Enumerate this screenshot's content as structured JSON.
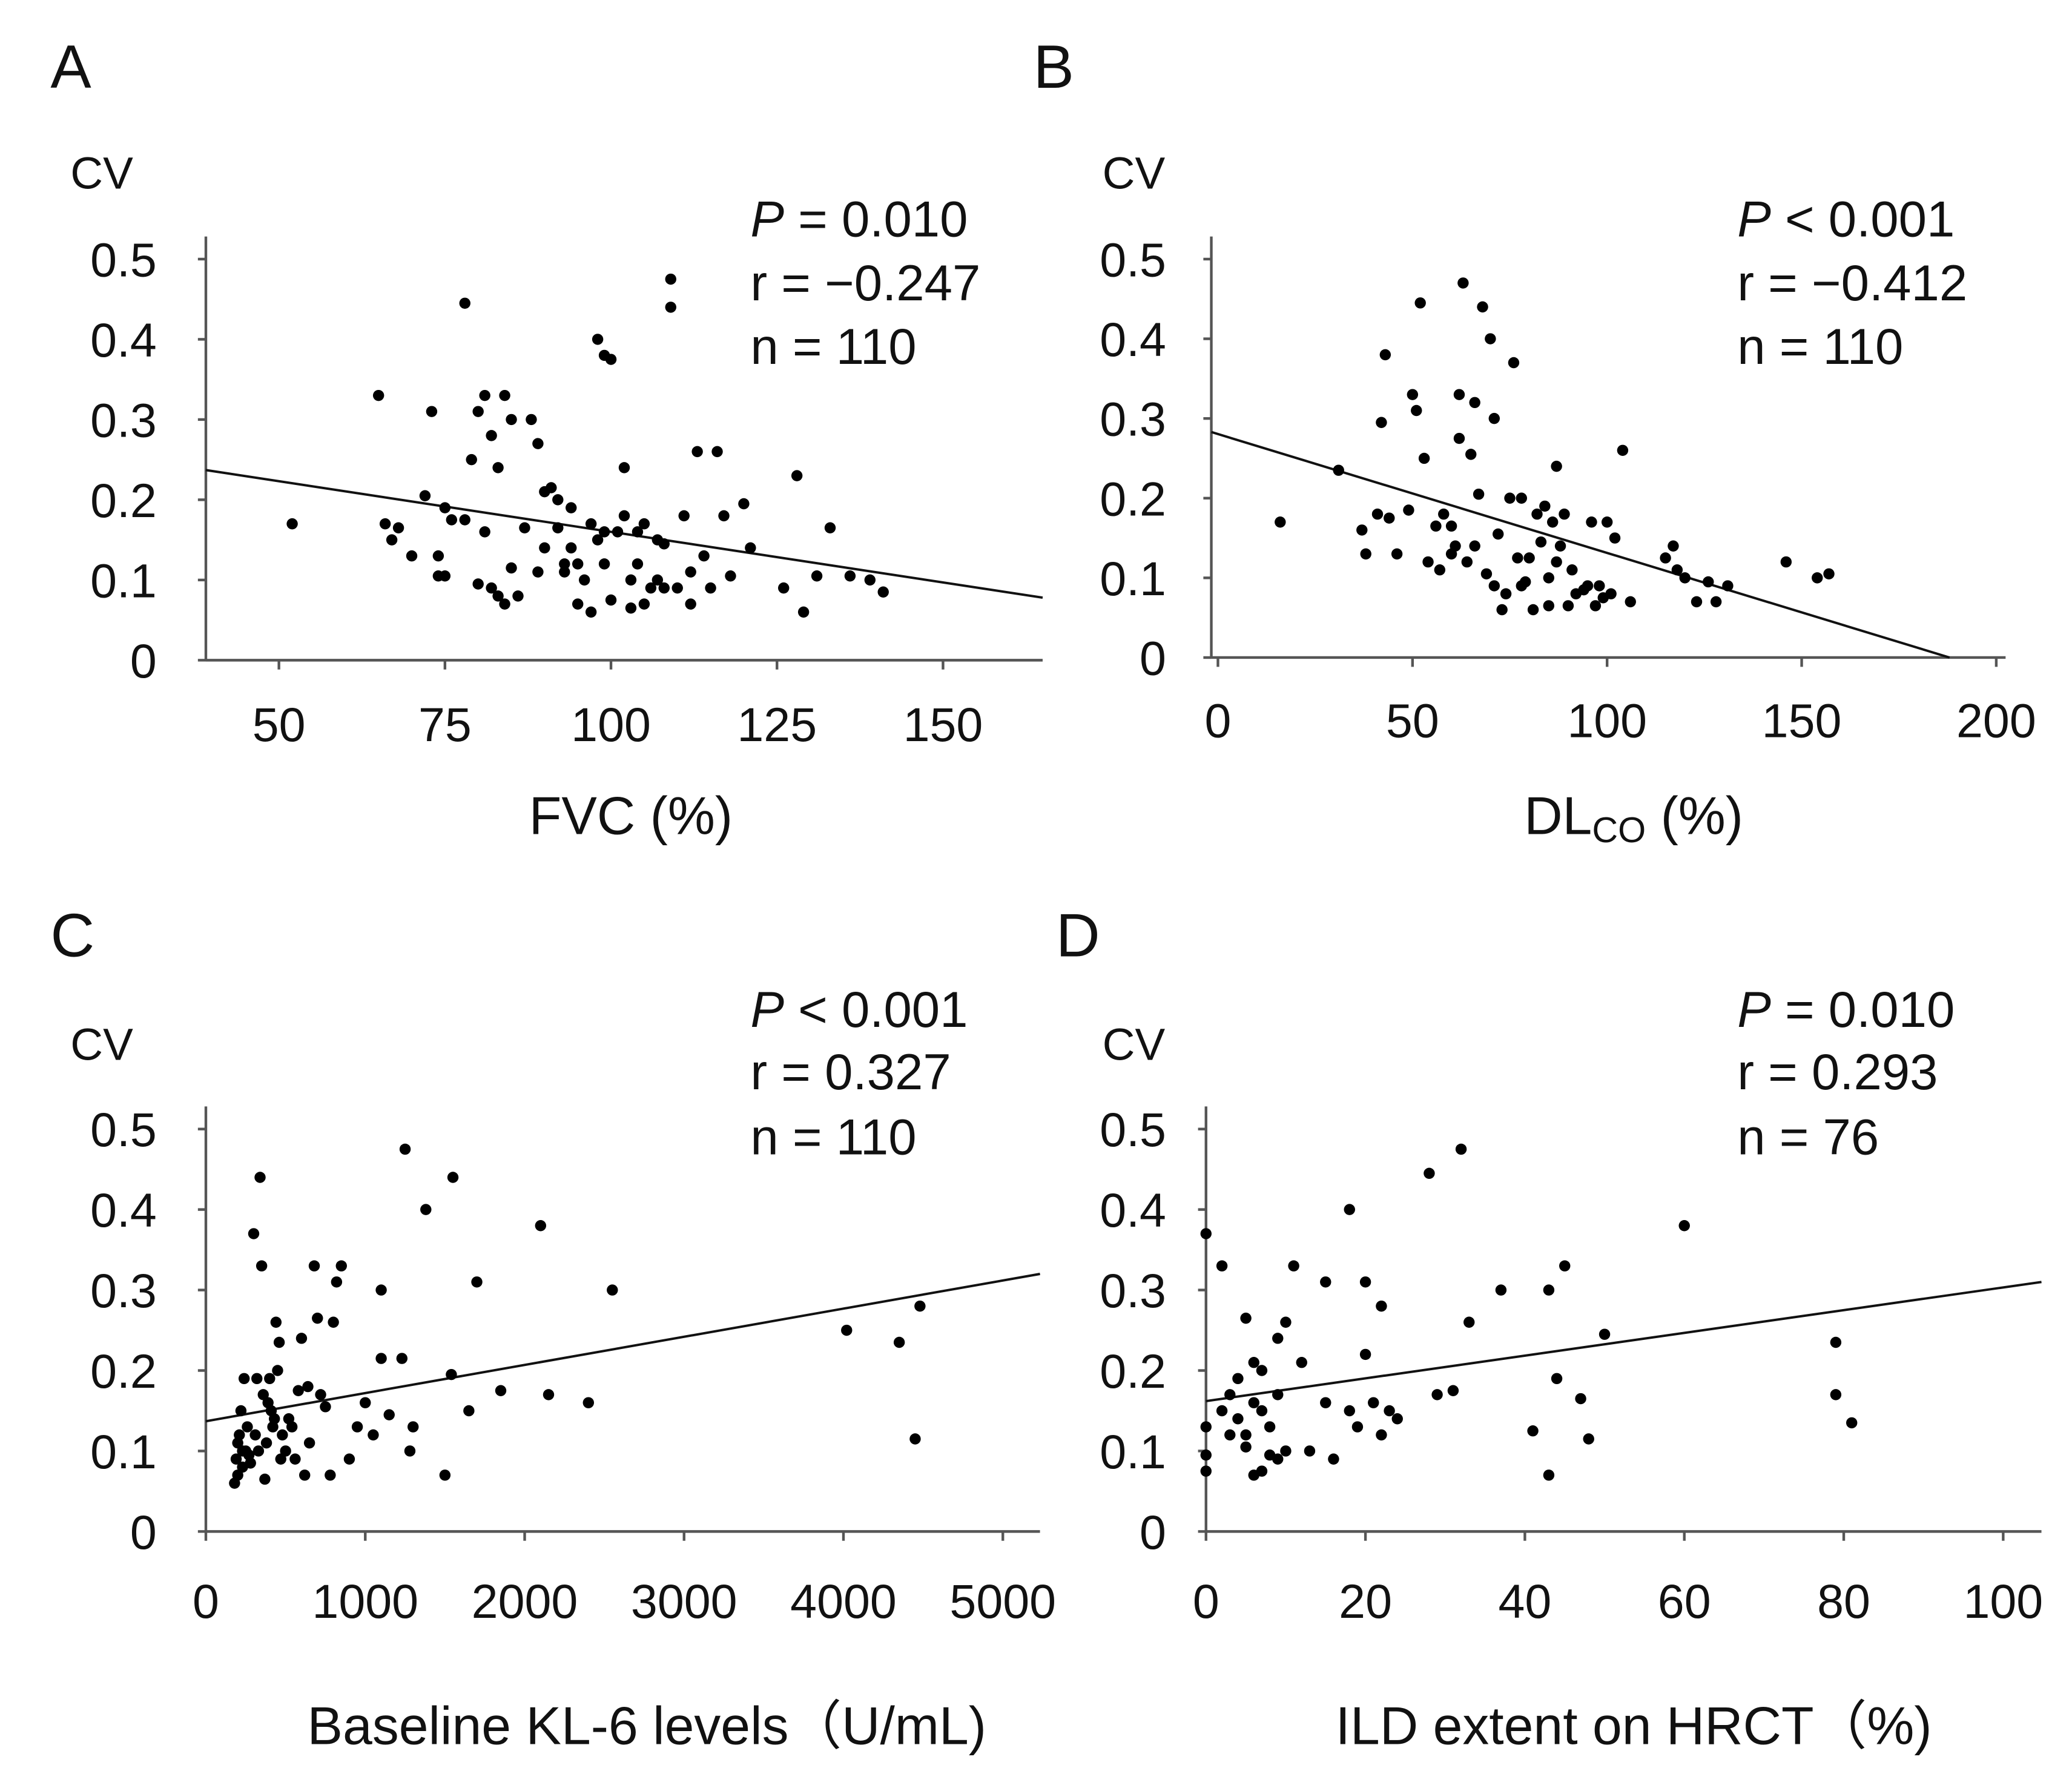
{
  "chart_data": [
    {
      "type": "scatter",
      "panel": "A",
      "ylabel": "CV",
      "xlabel": "FVC (%)",
      "xlabel_sub": "",
      "xlabel_rest": "",
      "xlim": [
        39,
        165
      ],
      "ylim": [
        0,
        0.5
      ],
      "xticks": [
        50,
        75,
        100,
        125,
        150
      ],
      "yticks": [
        0,
        0.1,
        0.2,
        0.3,
        0.4,
        0.5
      ],
      "ytick_labels": [
        "0",
        "0.1",
        "0.2",
        "0.3",
        "0.4",
        "0.5"
      ],
      "stats": {
        "p_label": "P",
        "p_text": " = 0.010",
        "r_text": "r = −0.247",
        "n_text": "n = 110"
      },
      "fit_line": [
        [
          39,
          0.237
        ],
        [
          165,
          0.078
        ]
      ],
      "points": [
        [
          52,
          0.17
        ],
        [
          65,
          0.33
        ],
        [
          66,
          0.17
        ],
        [
          67,
          0.15
        ],
        [
          68,
          0.165
        ],
        [
          70,
          0.13
        ],
        [
          72,
          0.205
        ],
        [
          73,
          0.31
        ],
        [
          74,
          0.13
        ],
        [
          74,
          0.105
        ],
        [
          75,
          0.19
        ],
        [
          75,
          0.105
        ],
        [
          76,
          0.175
        ],
        [
          78,
          0.175
        ],
        [
          78,
          0.445
        ],
        [
          79,
          0.25
        ],
        [
          80,
          0.31
        ],
        [
          80,
          0.095
        ],
        [
          81,
          0.33
        ],
        [
          81,
          0.16
        ],
        [
          82,
          0.28
        ],
        [
          82,
          0.09
        ],
        [
          83,
          0.24
        ],
        [
          83,
          0.08
        ],
        [
          84,
          0.33
        ],
        [
          84,
          0.07
        ],
        [
          85,
          0.3
        ],
        [
          85,
          0.115
        ],
        [
          86,
          0.08
        ],
        [
          87,
          0.165
        ],
        [
          88,
          0.3
        ],
        [
          89,
          0.27
        ],
        [
          89,
          0.11
        ],
        [
          90,
          0.21
        ],
        [
          90,
          0.14
        ],
        [
          91,
          0.215
        ],
        [
          92,
          0.2
        ],
        [
          92,
          0.165
        ],
        [
          93,
          0.12
        ],
        [
          94,
          0.19
        ],
        [
          94,
          0.14
        ],
        [
          95,
          0.12
        ],
        [
          95,
          0.07
        ],
        [
          96,
          0.1
        ],
        [
          97,
          0.17
        ],
        [
          97,
          0.06
        ],
        [
          98,
          0.4
        ],
        [
          98,
          0.15
        ],
        [
          99,
          0.38
        ],
        [
          99,
          0.12
        ],
        [
          100,
          0.375
        ],
        [
          100,
          0.075
        ],
        [
          101,
          0.16
        ],
        [
          102,
          0.24
        ],
        [
          102,
          0.18
        ],
        [
          103,
          0.1
        ],
        [
          104,
          0.16
        ],
        [
          104,
          0.12
        ],
        [
          105,
          0.17
        ],
        [
          105,
          0.07
        ],
        [
          106,
          0.09
        ],
        [
          107,
          0.15
        ],
        [
          108,
          0.145
        ],
        [
          108,
          0.09
        ],
        [
          109,
          0.475
        ],
        [
          109,
          0.44
        ],
        [
          110,
          0.09
        ],
        [
          111,
          0.18
        ],
        [
          112,
          0.07
        ],
        [
          112,
          0.11
        ],
        [
          113,
          0.26
        ],
        [
          114,
          0.13
        ],
        [
          115,
          0.09
        ],
        [
          116,
          0.26
        ],
        [
          117,
          0.18
        ],
        [
          118,
          0.105
        ],
        [
          120,
          0.195
        ],
        [
          121,
          0.14
        ],
        [
          126,
          0.09
        ],
        [
          128,
          0.23
        ],
        [
          129,
          0.06
        ],
        [
          131,
          0.105
        ],
        [
          133,
          0.165
        ],
        [
          136,
          0.105
        ],
        [
          139,
          0.1
        ],
        [
          141,
          0.085
        ],
        [
          107,
          0.1
        ],
        [
          99,
          0.16
        ],
        [
          93,
          0.11
        ],
        [
          103,
          0.065
        ]
      ]
    },
    {
      "type": "scatter",
      "panel": "B",
      "ylabel": "CV",
      "xlabel": "DL",
      "xlabel_sub": "CO",
      "xlabel_rest": " (%)",
      "xlim": [
        -1.7,
        202.4
      ],
      "ylim": [
        0,
        0.5
      ],
      "xticks": [
        0,
        50,
        100,
        150,
        200
      ],
      "yticks": [
        0,
        0.1,
        0.2,
        0.3,
        0.4,
        0.5
      ],
      "ytick_labels": [
        "0",
        "0.1",
        "0.2",
        "0.3",
        "0.4",
        "0.5"
      ],
      "stats": {
        "p_label": "P",
        "p_text": " < 0.001",
        "r_text": "r = −0.412",
        "n_text": "n = 110"
      },
      "fit_line": [
        [
          -1.7,
          0.283
        ],
        [
          188,
          0
        ]
      ],
      "points": [
        [
          16,
          0.17
        ],
        [
          31,
          0.235
        ],
        [
          37,
          0.16
        ],
        [
          38,
          0.13
        ],
        [
          41,
          0.18
        ],
        [
          42,
          0.295
        ],
        [
          43,
          0.38
        ],
        [
          44,
          0.175
        ],
        [
          46,
          0.13
        ],
        [
          49,
          0.185
        ],
        [
          50,
          0.33
        ],
        [
          51,
          0.31
        ],
        [
          52,
          0.445
        ],
        [
          53,
          0.25
        ],
        [
          54,
          0.12
        ],
        [
          56,
          0.165
        ],
        [
          57,
          0.11
        ],
        [
          58,
          0.18
        ],
        [
          60,
          0.13
        ],
        [
          61,
          0.14
        ],
        [
          62,
          0.275
        ],
        [
          62,
          0.33
        ],
        [
          63,
          0.47
        ],
        [
          64,
          0.12
        ],
        [
          65,
          0.255
        ],
        [
          66,
          0.32
        ],
        [
          67,
          0.205
        ],
        [
          68,
          0.44
        ],
        [
          69,
          0.105
        ],
        [
          70,
          0.4
        ],
        [
          71,
          0.3
        ],
        [
          71,
          0.09
        ],
        [
          72,
          0.155
        ],
        [
          73,
          0.06
        ],
        [
          74,
          0.08
        ],
        [
          75,
          0.2
        ],
        [
          76,
          0.37
        ],
        [
          77,
          0.125
        ],
        [
          78,
          0.2
        ],
        [
          79,
          0.095
        ],
        [
          80,
          0.125
        ],
        [
          81,
          0.06
        ],
        [
          82,
          0.18
        ],
        [
          83,
          0.145
        ],
        [
          84,
          0.19
        ],
        [
          85,
          0.1
        ],
        [
          86,
          0.17
        ],
        [
          87,
          0.24
        ],
        [
          87,
          0.12
        ],
        [
          88,
          0.14
        ],
        [
          89,
          0.18
        ],
        [
          90,
          0.065
        ],
        [
          91,
          0.11
        ],
        [
          92,
          0.08
        ],
        [
          94,
          0.085
        ],
        [
          95,
          0.09
        ],
        [
          96,
          0.17
        ],
        [
          97,
          0.065
        ],
        [
          98,
          0.09
        ],
        [
          99,
          0.075
        ],
        [
          100,
          0.17
        ],
        [
          101,
          0.08
        ],
        [
          102,
          0.15
        ],
        [
          104,
          0.26
        ],
        [
          106,
          0.07
        ],
        [
          117,
          0.14
        ],
        [
          118,
          0.11
        ],
        [
          120,
          0.1
        ],
        [
          123,
          0.07
        ],
        [
          126,
          0.095
        ],
        [
          128,
          0.07
        ],
        [
          131,
          0.09
        ],
        [
          146,
          0.12
        ],
        [
          154,
          0.1
        ],
        [
          157,
          0.105
        ],
        [
          115,
          0.125
        ],
        [
          78,
          0.09
        ],
        [
          66,
          0.14
        ],
        [
          60,
          0.165
        ],
        [
          85,
          0.065
        ]
      ]
    },
    {
      "type": "scatter",
      "panel": "C",
      "ylabel": "CV",
      "xlabel": "Baseline KL-6 levels（U/mL)",
      "xlabel_sub": "",
      "xlabel_rest": "",
      "xlim": [
        0,
        5233
      ],
      "ylim": [
        0,
        0.5
      ],
      "xticks": [
        0,
        1000,
        2000,
        3000,
        4000,
        5000
      ],
      "yticks": [
        0,
        0.1,
        0.2,
        0.3,
        0.4,
        0.5
      ],
      "ytick_labels": [
        "0",
        "0.1",
        "0.2",
        "0.3",
        "0.4",
        "0.5"
      ],
      "stats": {
        "p_label": "P",
        "p_text": " < 0.001",
        "r_text": "r = 0.327",
        "n_text": "n = 110"
      },
      "fit_line": [
        [
          0,
          0.137
        ],
        [
          5233,
          0.32
        ]
      ],
      "points": [
        [
          180,
          0.06
        ],
        [
          190,
          0.09
        ],
        [
          200,
          0.07
        ],
        [
          210,
          0.12
        ],
        [
          220,
          0.15
        ],
        [
          230,
          0.08
        ],
        [
          240,
          0.19
        ],
        [
          250,
          0.1
        ],
        [
          260,
          0.13
        ],
        [
          280,
          0.085
        ],
        [
          300,
          0.37
        ],
        [
          320,
          0.19
        ],
        [
          340,
          0.44
        ],
        [
          350,
          0.33
        ],
        [
          360,
          0.17
        ],
        [
          370,
          0.065
        ],
        [
          380,
          0.11
        ],
        [
          400,
          0.19
        ],
        [
          410,
          0.15
        ],
        [
          420,
          0.13
        ],
        [
          440,
          0.26
        ],
        [
          460,
          0.235
        ],
        [
          470,
          0.09
        ],
        [
          500,
          0.1
        ],
        [
          520,
          0.14
        ],
        [
          540,
          0.13
        ],
        [
          580,
          0.175
        ],
        [
          600,
          0.24
        ],
        [
          620,
          0.07
        ],
        [
          640,
          0.18
        ],
        [
          680,
          0.33
        ],
        [
          700,
          0.265
        ],
        [
          720,
          0.17
        ],
        [
          750,
          0.155
        ],
        [
          780,
          0.07
        ],
        [
          800,
          0.26
        ],
        [
          820,
          0.31
        ],
        [
          850,
          0.33
        ],
        [
          900,
          0.09
        ],
        [
          950,
          0.13
        ],
        [
          1000,
          0.16
        ],
        [
          1050,
          0.12
        ],
        [
          1100,
          0.3
        ],
        [
          1100,
          0.215
        ],
        [
          1150,
          0.145
        ],
        [
          1230,
          0.215
        ],
        [
          1250,
          0.475
        ],
        [
          1280,
          0.1
        ],
        [
          1300,
          0.13
        ],
        [
          1380,
          0.4
        ],
        [
          1500,
          0.07
        ],
        [
          1540,
          0.195
        ],
        [
          1550,
          0.44
        ],
        [
          1650,
          0.15
        ],
        [
          1700,
          0.31
        ],
        [
          1850,
          0.175
        ],
        [
          2100,
          0.38
        ],
        [
          2150,
          0.17
        ],
        [
          2400,
          0.16
        ],
        [
          2550,
          0.3
        ],
        [
          4020,
          0.25
        ],
        [
          4350,
          0.235
        ],
        [
          4450,
          0.115
        ],
        [
          4480,
          0.28
        ],
        [
          200,
          0.11
        ],
        [
          230,
          0.1
        ],
        [
          270,
          0.095
        ],
        [
          310,
          0.12
        ],
        [
          330,
          0.1
        ],
        [
          390,
          0.16
        ],
        [
          430,
          0.14
        ],
        [
          450,
          0.2
        ],
        [
          480,
          0.12
        ],
        [
          560,
          0.09
        ],
        [
          650,
          0.11
        ]
      ]
    },
    {
      "type": "scatter",
      "panel": "D",
      "ylabel": "CV",
      "xlabel": "ILD extent on HRCT（%)",
      "xlabel_sub": "",
      "xlabel_rest": "",
      "xlim": [
        0,
        104.8
      ],
      "ylim": [
        0,
        0.5
      ],
      "xticks": [
        0,
        20,
        40,
        60,
        80,
        100
      ],
      "yticks": [
        0,
        0.1,
        0.2,
        0.3,
        0.4,
        0.5
      ],
      "ytick_labels": [
        "0",
        "0.1",
        "0.2",
        "0.3",
        "0.4",
        "0.5"
      ],
      "stats": {
        "p_label": "P",
        "p_text": " = 0.010",
        "r_text": "r = 0.293",
        "n_text": "n = 76"
      },
      "fit_line": [
        [
          0,
          0.162
        ],
        [
          104.8,
          0.31
        ]
      ],
      "points": [
        [
          0,
          0.37
        ],
        [
          0,
          0.13
        ],
        [
          0,
          0.075
        ],
        [
          0,
          0.095
        ],
        [
          2,
          0.33
        ],
        [
          3,
          0.17
        ],
        [
          3,
          0.12
        ],
        [
          4,
          0.19
        ],
        [
          5,
          0.105
        ],
        [
          5,
          0.265
        ],
        [
          6,
          0.16
        ],
        [
          6,
          0.21
        ],
        [
          7,
          0.2
        ],
        [
          7,
          0.075
        ],
        [
          7,
          0.15
        ],
        [
          8,
          0.095
        ],
        [
          8,
          0.13
        ],
        [
          9,
          0.24
        ],
        [
          9,
          0.17
        ],
        [
          10,
          0.26
        ],
        [
          10,
          0.1
        ],
        [
          11,
          0.33
        ],
        [
          12,
          0.21
        ],
        [
          13,
          0.1
        ],
        [
          15,
          0.31
        ],
        [
          15,
          0.16
        ],
        [
          16,
          0.09
        ],
        [
          18,
          0.4
        ],
        [
          18,
          0.15
        ],
        [
          19,
          0.13
        ],
        [
          20,
          0.31
        ],
        [
          20,
          0.22
        ],
        [
          21,
          0.16
        ],
        [
          22,
          0.28
        ],
        [
          22,
          0.12
        ],
        [
          23,
          0.15
        ],
        [
          28,
          0.445
        ],
        [
          29,
          0.17
        ],
        [
          31,
          0.175
        ],
        [
          32,
          0.475
        ],
        [
          33,
          0.26
        ],
        [
          37,
          0.3
        ],
        [
          41,
          0.125
        ],
        [
          43,
          0.3
        ],
        [
          43,
          0.07
        ],
        [
          44,
          0.19
        ],
        [
          45,
          0.33
        ],
        [
          47,
          0.165
        ],
        [
          48,
          0.115
        ],
        [
          50,
          0.245
        ],
        [
          60,
          0.38
        ],
        [
          79,
          0.235
        ],
        [
          79,
          0.17
        ],
        [
          81,
          0.135
        ],
        [
          5,
          0.12
        ],
        [
          6,
          0.07
        ],
        [
          4,
          0.14
        ],
        [
          2,
          0.15
        ],
        [
          9,
          0.09
        ],
        [
          24,
          0.14
        ]
      ]
    }
  ]
}
